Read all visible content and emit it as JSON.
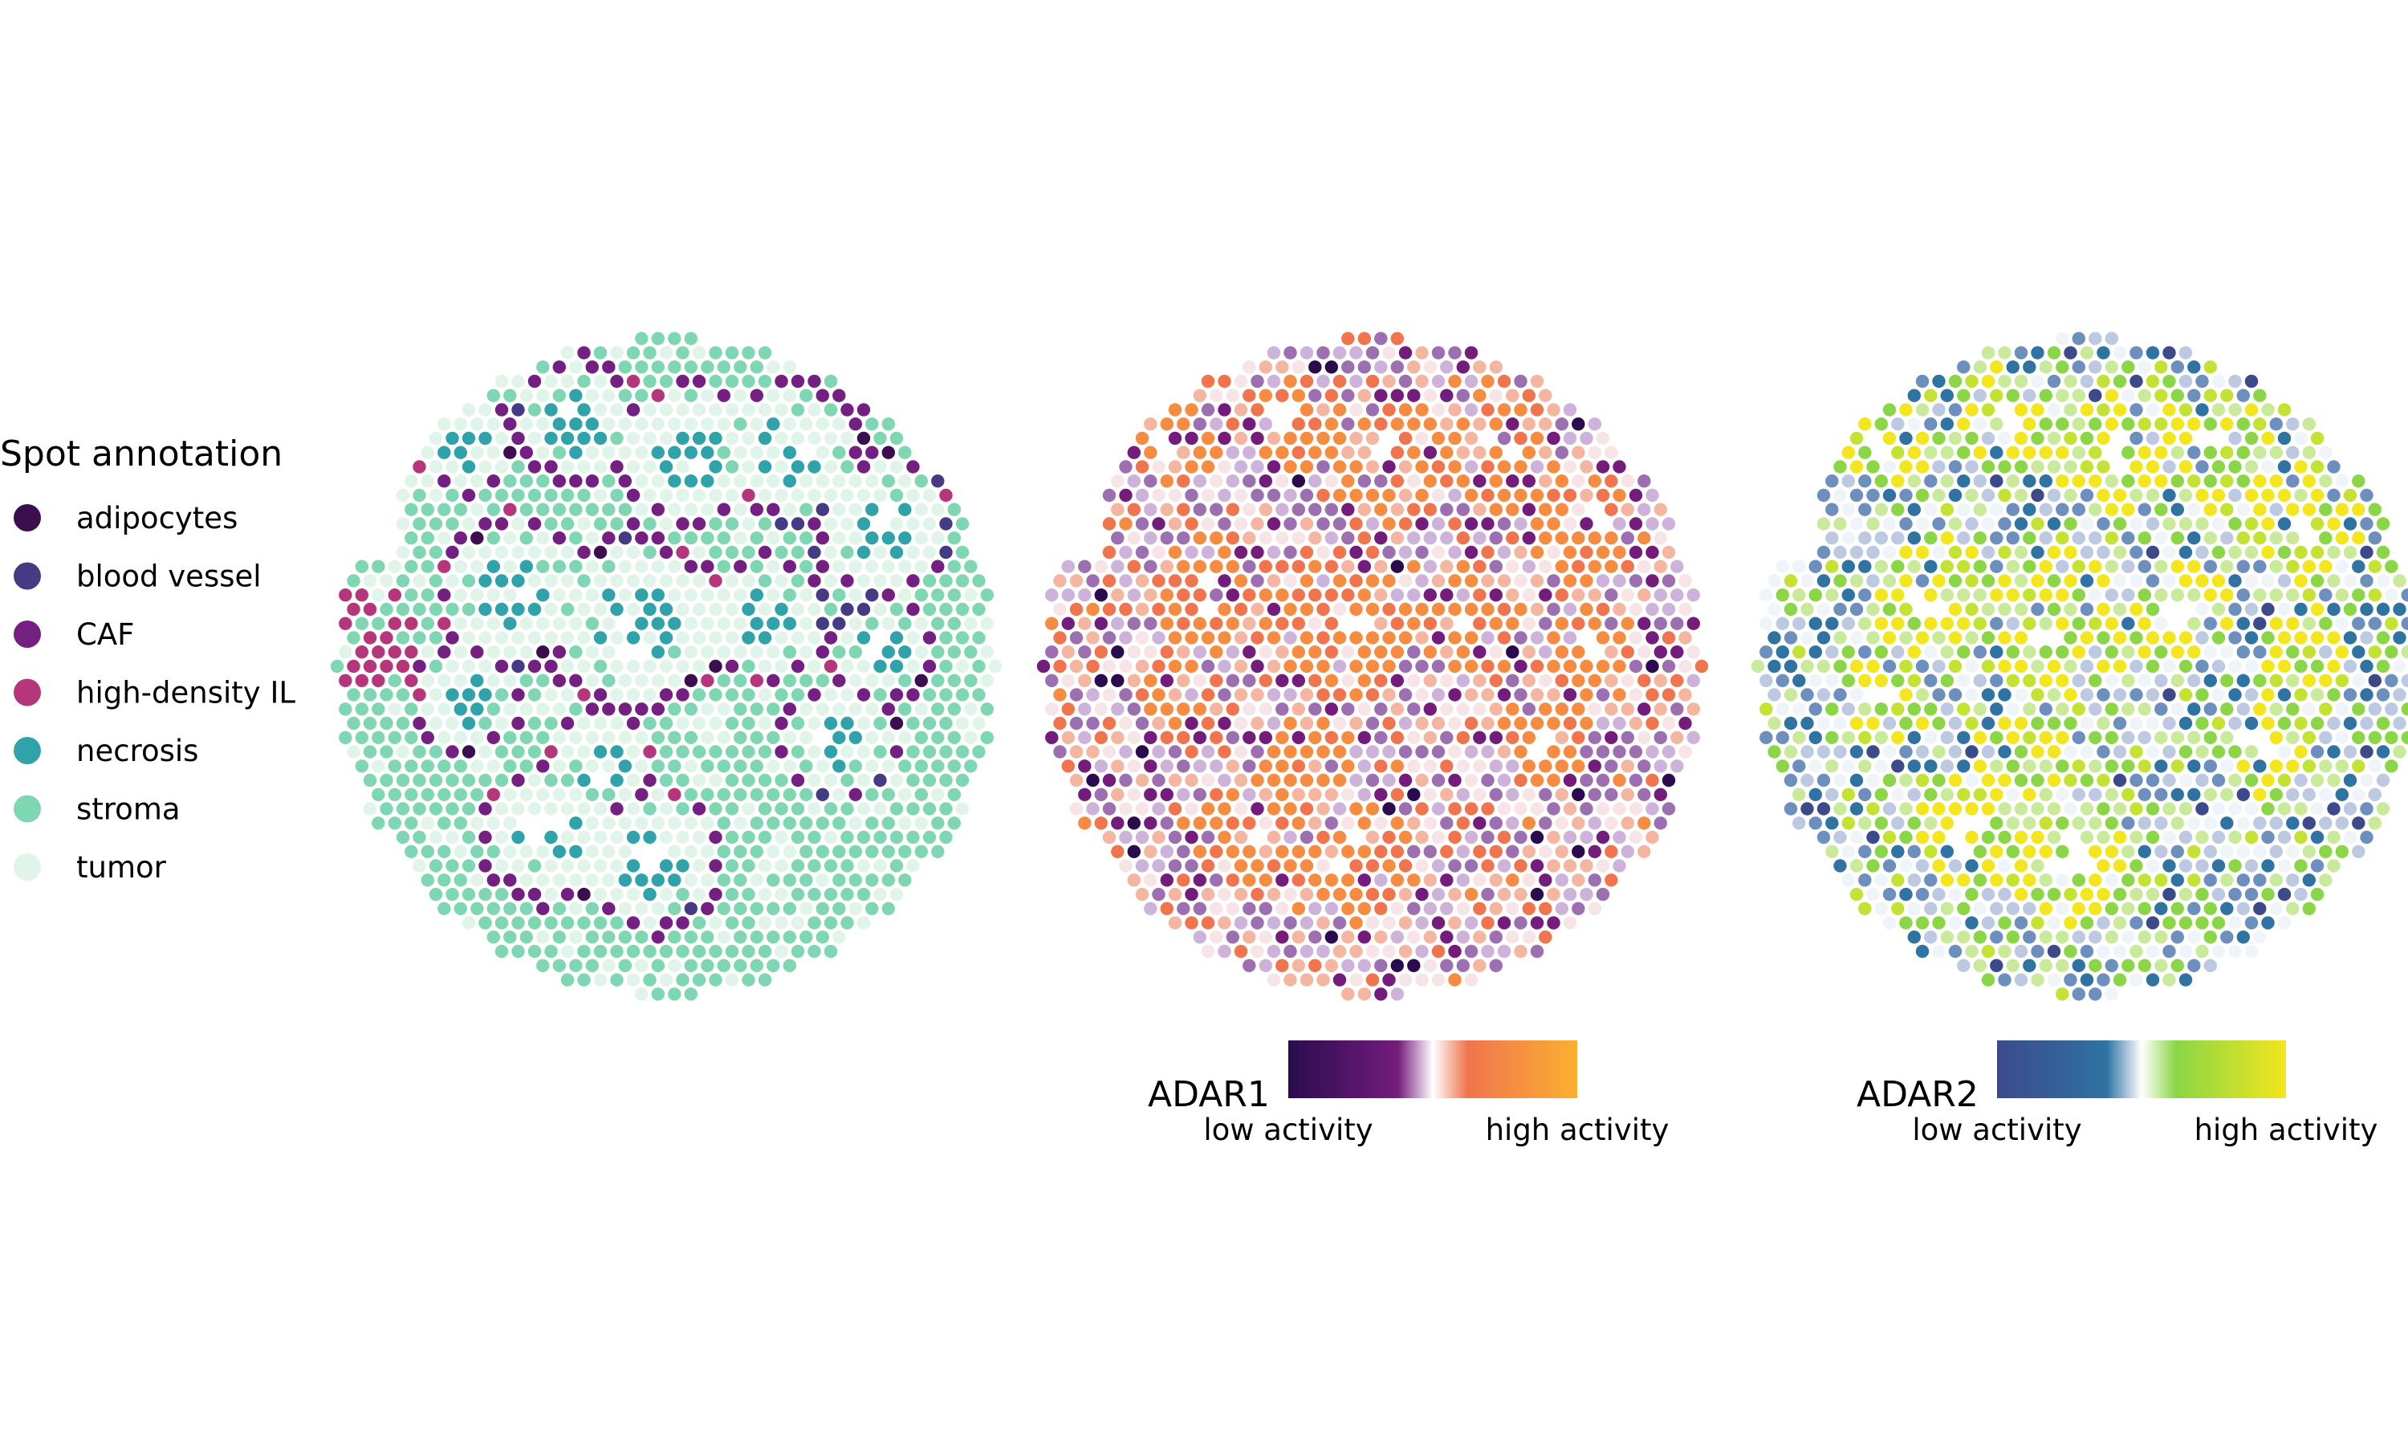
{
  "chart_data": [
    {
      "type": "scatter",
      "panel": "spot-annotation",
      "legend": {
        "title": "Spot annotation",
        "placement": "left",
        "items": [
          {
            "label": "adipocytes",
            "color": "#3b0f4f"
          },
          {
            "label": "blood vessel",
            "color": "#453b85"
          },
          {
            "label": "CAF",
            "color": "#742082"
          },
          {
            "label": "high-density IL",
            "color": "#b5367a"
          },
          {
            "label": "necrosis",
            "color": "#30a2aa"
          },
          {
            "label": "stroma",
            "color": "#7fd6b3"
          },
          {
            "label": "tumor",
            "color": "#e0f4e9"
          }
        ]
      },
      "grid": false,
      "axes": false
    },
    {
      "type": "scatter",
      "panel": "ADAR1",
      "colorbar": {
        "title": "ADAR1",
        "low_label": "low activity",
        "high_label": "high activity",
        "colors": [
          "#2a0c4e",
          "#741c7c",
          "#ffffff",
          "#f0744e",
          "#fbb030"
        ],
        "placement": "bottom"
      },
      "grid": false,
      "axes": false
    },
    {
      "type": "scatter",
      "panel": "ADAR2",
      "colorbar": {
        "title": "ADAR2",
        "low_label": "low activity",
        "high_label": "high activity",
        "colors": [
          "#3c4a8a",
          "#2f73a3",
          "#ffffff",
          "#8bd646",
          "#f3e51e"
        ],
        "placement": "bottom"
      },
      "grid": false,
      "axes": false
    }
  ]
}
